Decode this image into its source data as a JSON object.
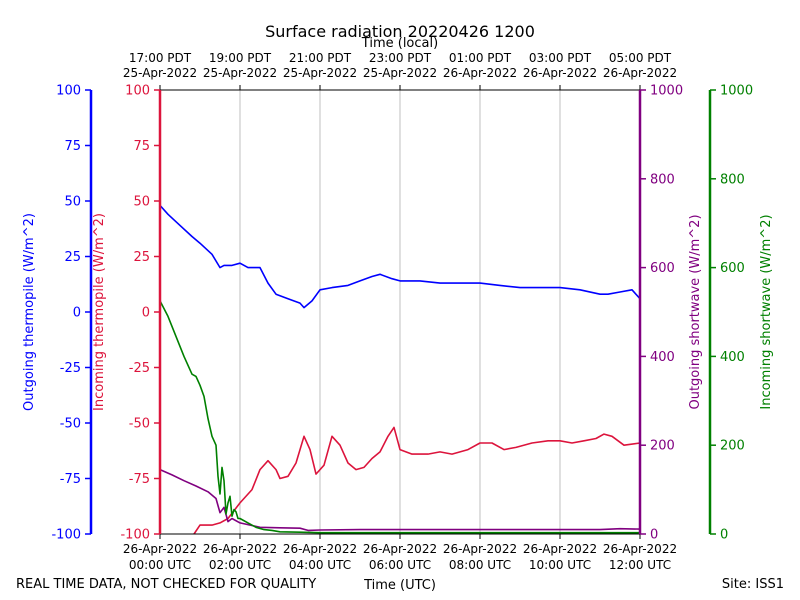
{
  "chart_data": {
    "type": "line",
    "title": "Surface radiation 20220426 1200",
    "top_axis_label": "Time (local)",
    "xlabel": "Time (UTC)",
    "footer_left": "REAL TIME DATA, NOT CHECKED FOR QUALITY",
    "footer_right": "Site: ISS1",
    "x_range_hours": [
      0,
      12
    ],
    "x_ticks": [
      {
        "hour": 0,
        "utc_date": "26-Apr-2022",
        "utc_time": "00:00 UTC",
        "local_time": "17:00 PDT",
        "local_date": "25-Apr-2022"
      },
      {
        "hour": 2,
        "utc_date": "26-Apr-2022",
        "utc_time": "02:00 UTC",
        "local_time": "19:00 PDT",
        "local_date": "25-Apr-2022"
      },
      {
        "hour": 4,
        "utc_date": "26-Apr-2022",
        "utc_time": "04:00 UTC",
        "local_time": "21:00 PDT",
        "local_date": "25-Apr-2022"
      },
      {
        "hour": 6,
        "utc_date": "26-Apr-2022",
        "utc_time": "06:00 UTC",
        "local_time": "23:00 PDT",
        "local_date": "25-Apr-2022"
      },
      {
        "hour": 8,
        "utc_date": "26-Apr-2022",
        "utc_time": "08:00 UTC",
        "local_time": "01:00 PDT",
        "local_date": "26-Apr-2022"
      },
      {
        "hour": 10,
        "utc_date": "26-Apr-2022",
        "utc_time": "10:00 UTC",
        "local_time": "03:00 PDT",
        "local_date": "26-Apr-2022"
      },
      {
        "hour": 12,
        "utc_date": "26-Apr-2022",
        "utc_time": "12:00 UTC",
        "local_time": "05:00 PDT",
        "local_date": "26-Apr-2022"
      }
    ],
    "axes": [
      {
        "id": "outgoing_thermopile",
        "label": "Outgoing thermopile (W/m^2)",
        "color": "#0000ff",
        "range": [
          -100,
          100
        ],
        "ticks": [
          -100,
          -75,
          -50,
          -25,
          0,
          25,
          50,
          75,
          100
        ]
      },
      {
        "id": "incoming_thermopile",
        "label": "Incoming thermopile (W/m^2)",
        "color": "#dc143c",
        "range": [
          -100,
          100
        ],
        "ticks": [
          -100,
          -75,
          -50,
          -25,
          0,
          25,
          50,
          75,
          100
        ]
      },
      {
        "id": "outgoing_shortwave",
        "label": "Outgoing shortwave (W/m^2)",
        "color": "#800080",
        "range": [
          0,
          1000
        ],
        "ticks": [
          0,
          200,
          400,
          600,
          800,
          1000
        ]
      },
      {
        "id": "incoming_shortwave",
        "label": "Incoming shortwave (W/m^2)",
        "color": "#008000",
        "range": [
          0,
          1000
        ],
        "ticks": [
          0,
          200,
          400,
          600,
          800,
          1000
        ]
      }
    ],
    "grid": "vertical",
    "series": [
      {
        "name": "Outgoing thermopile",
        "axis": "outgoing_thermopile",
        "color": "#0000ff",
        "x": [
          0,
          0.2,
          0.5,
          0.8,
          1.0,
          1.3,
          1.5,
          1.6,
          1.8,
          2.0,
          2.2,
          2.5,
          2.7,
          2.9,
          3.2,
          3.5,
          3.6,
          3.8,
          4.0,
          4.3,
          4.7,
          5.0,
          5.3,
          5.5,
          5.8,
          6.0,
          6.5,
          7.0,
          7.5,
          8.0,
          8.5,
          9.0,
          9.5,
          10.0,
          10.5,
          11.0,
          11.2,
          11.5,
          11.8,
          12.0
        ],
        "y": [
          48,
          44,
          39,
          34,
          31,
          26,
          20,
          21,
          21,
          22,
          20,
          20,
          13,
          8,
          6,
          4,
          2,
          5,
          10,
          11,
          12,
          14,
          16,
          17,
          15,
          14,
          14,
          13,
          13,
          13,
          12,
          11,
          11,
          11,
          10,
          8,
          8,
          9,
          10,
          6
        ]
      },
      {
        "name": "Incoming thermopile",
        "axis": "incoming_thermopile",
        "color": "#dc143c",
        "x": [
          0.85,
          1.0,
          1.1,
          1.3,
          1.5,
          1.7,
          2.0,
          2.3,
          2.5,
          2.7,
          2.9,
          3.0,
          3.2,
          3.4,
          3.6,
          3.75,
          3.9,
          4.1,
          4.3,
          4.5,
          4.7,
          4.9,
          5.1,
          5.3,
          5.5,
          5.7,
          5.85,
          6.0,
          6.3,
          6.7,
          7.0,
          7.3,
          7.5,
          7.7,
          8.0,
          8.3,
          8.6,
          8.9,
          9.3,
          9.7,
          10.0,
          10.3,
          10.6,
          10.9,
          11.1,
          11.3,
          11.6,
          12.0
        ],
        "y": [
          -100,
          -96,
          -96,
          -96,
          -95,
          -93,
          -86,
          -80,
          -71,
          -67,
          -71,
          -75,
          -74,
          -68,
          -56,
          -62,
          -73,
          -69,
          -56,
          -60,
          -68,
          -71,
          -70,
          -66,
          -63,
          -56,
          -52,
          -62,
          -64,
          -64,
          -63,
          -64,
          -63,
          -62,
          -59,
          -59,
          -62,
          -61,
          -59,
          -58,
          -58,
          -59,
          -58,
          -57,
          -55,
          -56,
          -60,
          -59
        ]
      },
      {
        "name": "Outgoing shortwave",
        "axis": "outgoing_shortwave",
        "color": "#800080",
        "x": [
          0,
          0.3,
          0.6,
          0.9,
          1.2,
          1.4,
          1.5,
          1.6,
          1.7,
          1.8,
          2.0,
          2.5,
          3.0,
          3.5,
          3.7,
          4.0,
          5.0,
          6.0,
          7.0,
          8.0,
          9.0,
          10.0,
          11.0,
          11.5,
          12.0
        ],
        "y": [
          145,
          133,
          120,
          108,
          95,
          80,
          48,
          60,
          28,
          35,
          25,
          15,
          14,
          13,
          8,
          9,
          10,
          10,
          10,
          10,
          10,
          10,
          10,
          12,
          11
        ]
      },
      {
        "name": "Incoming shortwave",
        "axis": "incoming_shortwave",
        "color": "#008000",
        "x": [
          0,
          0.2,
          0.4,
          0.6,
          0.8,
          0.9,
          1.0,
          1.1,
          1.2,
          1.3,
          1.4,
          1.45,
          1.5,
          1.55,
          1.6,
          1.65,
          1.7,
          1.75,
          1.8,
          1.85,
          1.9,
          1.95,
          2.0,
          2.2,
          2.4,
          2.6,
          2.8,
          3.0,
          3.5,
          4.0,
          5.0,
          6.0,
          7.0,
          8.0,
          9.0,
          10.0,
          11.0,
          12.0
        ],
        "y": [
          525,
          490,
          445,
          400,
          360,
          355,
          335,
          310,
          260,
          220,
          200,
          130,
          90,
          150,
          120,
          45,
          70,
          85,
          40,
          55,
          50,
          35,
          35,
          25,
          15,
          10,
          8,
          5,
          4,
          3,
          3,
          3,
          3,
          3,
          3,
          3,
          3,
          3
        ]
      }
    ]
  }
}
